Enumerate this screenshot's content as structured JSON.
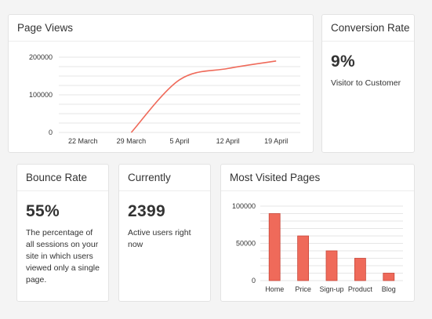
{
  "page_views": {
    "title": "Page Views"
  },
  "conversion": {
    "title": "Conversion Rate",
    "value": "9%",
    "description": "Visitor to Customer"
  },
  "bounce": {
    "title": "Bounce Rate",
    "value": "55%",
    "description": "The percentage of all sessions on your site in which users viewed only a single page."
  },
  "currently": {
    "title": "Currently",
    "value": "2399",
    "description": "Active users right now"
  },
  "most_visited": {
    "title": "Most Visited Pages"
  },
  "colors": {
    "line": "#ef6a5a",
    "bar_fill": "#ef6a5a",
    "bar_stroke": "#c9473a",
    "grid": "#e6e6e6",
    "axis_text": "#333333"
  },
  "chart_data": [
    {
      "type": "line",
      "x": [
        "22 March",
        "29 March",
        "5 April",
        "12 April",
        "19 April"
      ],
      "series": [
        {
          "values": [
            null,
            0,
            140000,
            170000,
            190000
          ]
        }
      ],
      "yticks": [
        0,
        100000,
        200000
      ],
      "ylim": [
        0,
        200000
      ],
      "grid": true
    },
    {
      "type": "bar",
      "categories": [
        "Home",
        "Price",
        "Sign-up",
        "Product",
        "Blog"
      ],
      "values": [
        90000,
        60000,
        40000,
        30000,
        10000
      ],
      "yticks": [
        0,
        50000,
        100000
      ],
      "ylim": [
        0,
        100000
      ],
      "grid": true
    }
  ]
}
